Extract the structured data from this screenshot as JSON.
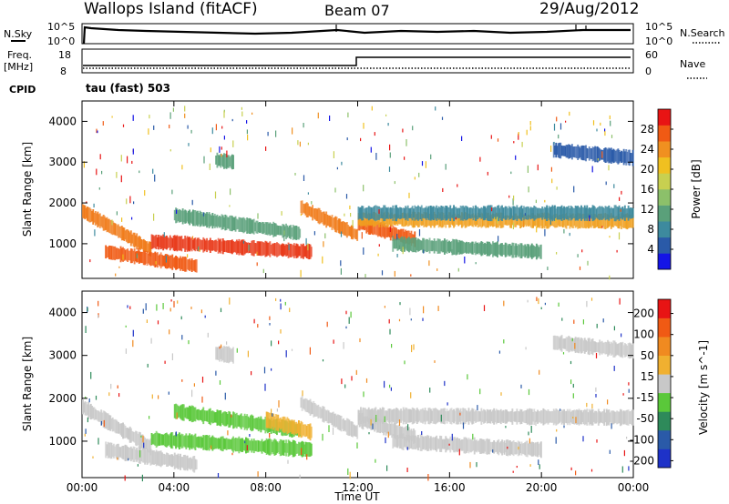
{
  "header": {
    "station": "Wallops Island (fitACF)",
    "beam": "Beam 07",
    "date": "29/Aug/2012"
  },
  "top_panels": {
    "nsky_label": "N.Sky",
    "nsky_ticks": [
      "10^5",
      "10^0"
    ],
    "nsearch_label": "N.Search",
    "nsearch_ticks": [
      "10^5",
      "10^0"
    ],
    "freq_label": "Freq.",
    "freq_unit": "[MHz]",
    "freq_ticks": [
      "18",
      "8"
    ],
    "nave_label": "Nave",
    "nave_ticks": [
      "60",
      "0"
    ],
    "cpid_label": "CPID",
    "cpid_value": "tau (fast) 503"
  },
  "chart_data": [
    {
      "type": "heatmap",
      "name": "power",
      "ylabel": "Slant Range [km]",
      "yticks": [
        "1000",
        "2000",
        "3000",
        "4000"
      ],
      "ylim": [
        150,
        4500
      ],
      "xlim": [
        0,
        24
      ],
      "colorbar": {
        "label": "Power [dB]",
        "ticks": [
          "4",
          "8",
          "12",
          "16",
          "20",
          "24",
          "28"
        ],
        "colors": [
          "#1414e6",
          "#2a5aa8",
          "#3d8a9e",
          "#5aa07a",
          "#8cc06a",
          "#c8d050",
          "#f0c020",
          "#f09020",
          "#f05a14",
          "#e81414"
        ]
      },
      "bands": [
        {
          "t0": 0.0,
          "t1": 3.0,
          "r0": 1800,
          "r1": 850,
          "c": "#f07a18"
        },
        {
          "t0": 1.0,
          "t1": 5.0,
          "r0": 800,
          "r1": 450,
          "c": "#f05a14"
        },
        {
          "t0": 3.0,
          "t1": 10.0,
          "r0": 1050,
          "r1": 800,
          "c": "#e83818"
        },
        {
          "t0": 4.0,
          "t1": 9.5,
          "r0": 1700,
          "r1": 1250,
          "c": "#5aa07a"
        },
        {
          "t0": 9.5,
          "t1": 12.0,
          "r0": 1900,
          "r1": 1200,
          "c": "#f07a18"
        },
        {
          "t0": 12.0,
          "t1": 14.5,
          "r0": 1500,
          "r1": 1100,
          "c": "#f05a14"
        },
        {
          "t0": 12.0,
          "t1": 24.0,
          "r0": 1600,
          "r1": 1550,
          "c": "#f0a020"
        },
        {
          "t0": 12.0,
          "t1": 24.0,
          "r0": 1750,
          "r1": 1750,
          "c": "#3d8a9e"
        },
        {
          "t0": 13.5,
          "t1": 20.0,
          "r0": 1000,
          "r1": 800,
          "c": "#5aa07a"
        },
        {
          "t0": 20.5,
          "t1": 24.0,
          "r0": 3300,
          "r1": 3100,
          "c": "#2a5aa8"
        },
        {
          "t0": 5.8,
          "t1": 6.6,
          "r0": 3050,
          "r1": 3000,
          "c": "#5aa07a"
        }
      ]
    },
    {
      "type": "heatmap",
      "name": "velocity",
      "ylabel": "Slant Range [km]",
      "yticks": [
        "1000",
        "2000",
        "3000",
        "4000"
      ],
      "ylim": [
        150,
        4500
      ],
      "xlim": [
        0,
        24
      ],
      "xlabel": "Time UT",
      "xticks": [
        "00:00",
        "04:00",
        "08:00",
        "12:00",
        "16:00",
        "20:00",
        "00:00"
      ],
      "colorbar": {
        "label": "Velocity [m s^-1]",
        "ticks": [
          "200",
          "100",
          "50",
          "15",
          "-15",
          "-50",
          "-100",
          "-200"
        ],
        "colors": [
          "#1e32c8",
          "#2a5aa8",
          "#2e8a5a",
          "#5ac83a",
          "#c8c8c8",
          "#f0b030",
          "#f08a20",
          "#f05a14",
          "#e81414"
        ]
      },
      "bands": [
        {
          "t0": 0.0,
          "t1": 3.0,
          "r0": 1800,
          "r1": 850,
          "c": "#c8c8c8"
        },
        {
          "t0": 1.0,
          "t1": 5.0,
          "r0": 800,
          "r1": 450,
          "c": "#c8c8c8"
        },
        {
          "t0": 3.0,
          "t1": 10.0,
          "r0": 1050,
          "r1": 800,
          "c": "#5ac83a"
        },
        {
          "t0": 4.0,
          "t1": 9.5,
          "r0": 1700,
          "r1": 1250,
          "c": "#5ac83a"
        },
        {
          "t0": 8.0,
          "t1": 10.0,
          "r0": 1500,
          "r1": 1200,
          "c": "#f0b030"
        },
        {
          "t0": 9.5,
          "t1": 12.0,
          "r0": 1900,
          "r1": 1200,
          "c": "#c8c8c8"
        },
        {
          "t0": 12.0,
          "t1": 14.5,
          "r0": 1500,
          "r1": 1100,
          "c": "#c8c8c8"
        },
        {
          "t0": 12.0,
          "t1": 24.0,
          "r0": 1600,
          "r1": 1550,
          "c": "#c8c8c8"
        },
        {
          "t0": 13.5,
          "t1": 20.0,
          "r0": 1000,
          "r1": 800,
          "c": "#c8c8c8"
        },
        {
          "t0": 20.5,
          "t1": 24.0,
          "r0": 3300,
          "r1": 3100,
          "c": "#c8c8c8"
        },
        {
          "t0": 5.8,
          "t1": 6.6,
          "r0": 3050,
          "r1": 3000,
          "c": "#c8c8c8"
        }
      ]
    }
  ]
}
